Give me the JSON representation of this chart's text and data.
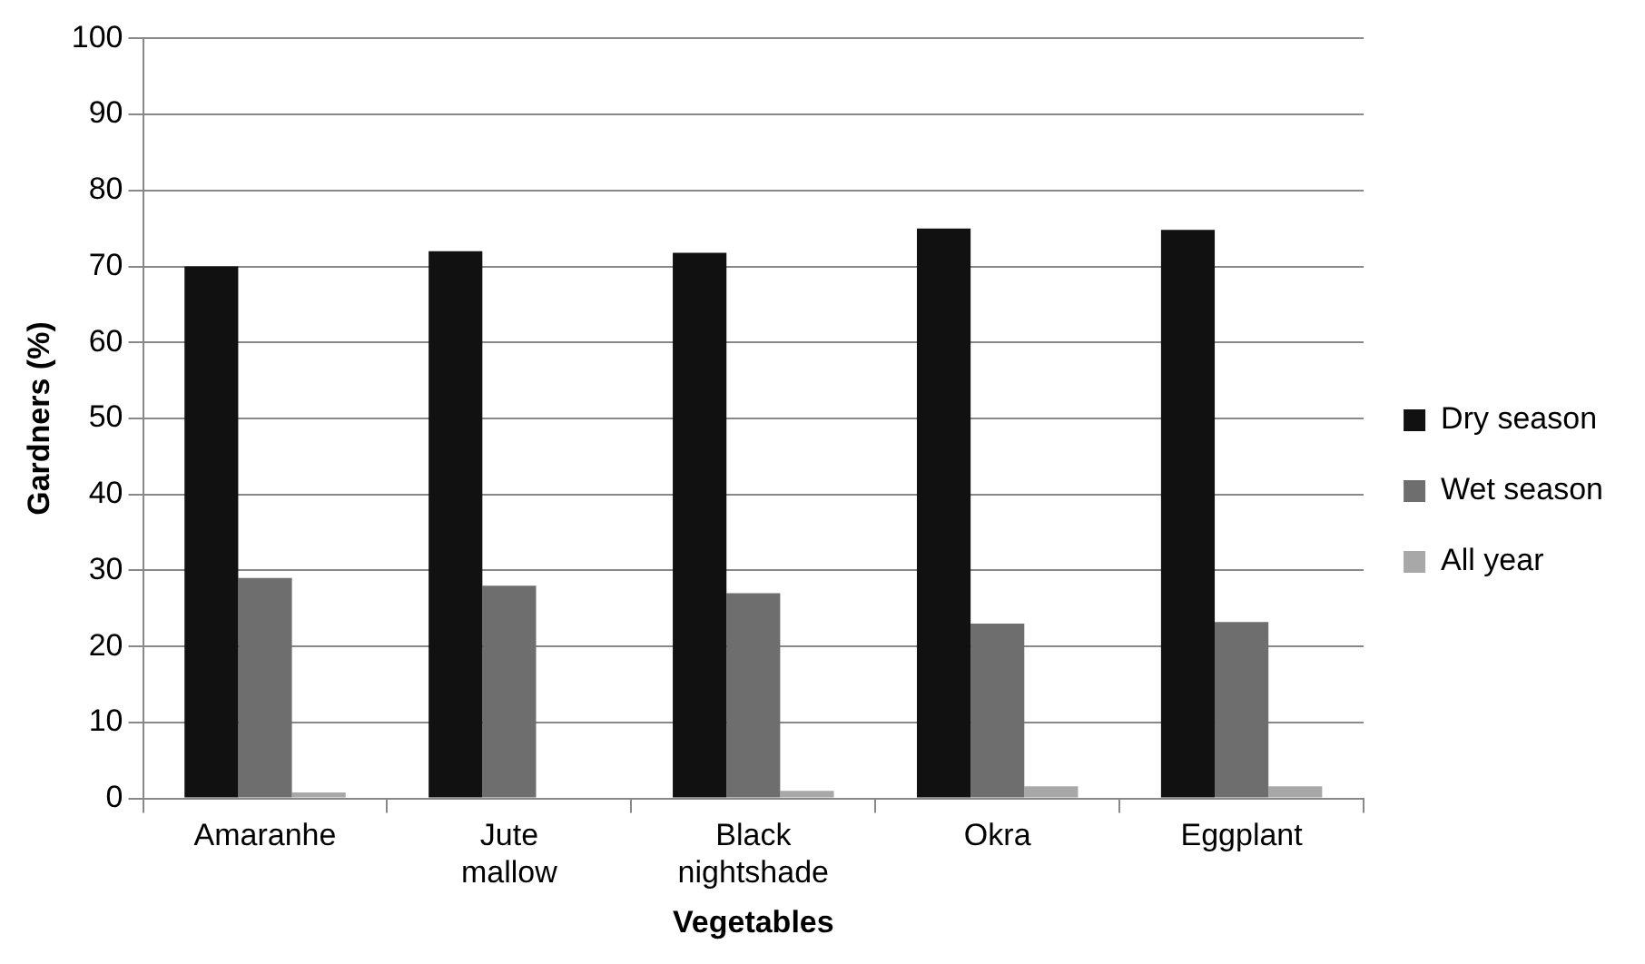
{
  "chart_data": {
    "type": "bar",
    "xlabel": "Vegetables",
    "ylabel": "Gardners (%)",
    "categories": [
      "Amaranhe",
      "Jute mallow",
      "Black nightshade",
      "Okra",
      "Eggplant"
    ],
    "series": [
      {
        "name": "Dry season",
        "color": "#111111",
        "values": [
          70,
          72,
          71.8,
          75,
          74.8
        ]
      },
      {
        "name": "Wet season",
        "color": "#6e6e6e",
        "values": [
          29,
          28,
          27,
          23,
          23.2
        ]
      },
      {
        "name": "All year",
        "color": "#a8a8a8",
        "values": [
          0.8,
          0,
          1,
          1.6,
          1.6
        ]
      }
    ],
    "ylim": [
      0,
      100
    ],
    "yticks": [
      0,
      10,
      20,
      30,
      40,
      50,
      60,
      70,
      80,
      90,
      100
    ],
    "grid": "y",
    "legend": "right"
  }
}
